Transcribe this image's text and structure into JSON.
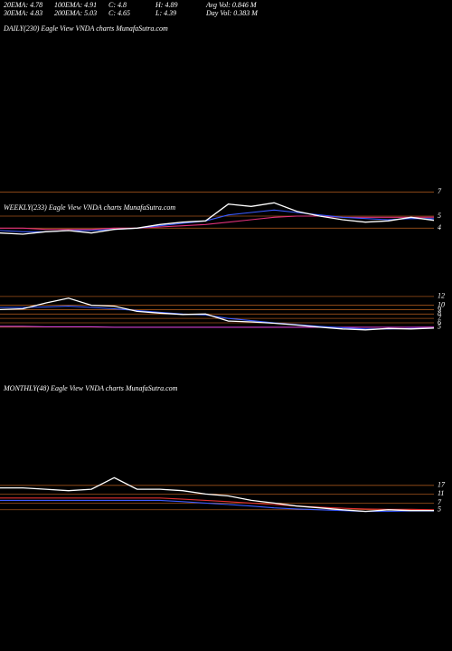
{
  "header": {
    "rows": [
      [
        "20EMA: 4.78",
        "100EMA: 4.91",
        "C: 4.8",
        "H: 4.89",
        "Avg Vol: 0.846  M"
      ],
      [
        "30EMA: 4.83",
        "200EMA: 5.03",
        "C: 4.65",
        "L: 4.39",
        "Day Vol: 0.383  M"
      ]
    ]
  },
  "chart_data": [
    {
      "type": "line",
      "title": "DAILY(230) Eagle   View   VNDA charts MunafaSutra.com",
      "ylim": [
        3,
        13
      ],
      "yticks": [
        12,
        10,
        9,
        8,
        7,
        6,
        5
      ],
      "grid": true,
      "grid_color": "#a0521a",
      "log": false,
      "series": [
        {
          "name": "Price",
          "color": "#ffffff",
          "values": [
            9.0,
            9.2,
            10.5,
            11.6,
            10.0,
            9.8,
            8.6,
            8.2,
            7.9,
            8.0,
            6.4,
            6.2,
            5.9,
            5.5,
            5.0,
            4.6,
            4.4,
            4.7,
            4.6,
            4.8
          ]
        },
        {
          "name": "20EMA",
          "color": "#3a5bff",
          "values": [
            9.5,
            9.5,
            9.6,
            9.8,
            9.5,
            9.2,
            8.8,
            8.4,
            8.0,
            7.8,
            7.0,
            6.5,
            6.0,
            5.6,
            5.2,
            4.9,
            4.6,
            4.6,
            4.7,
            4.78
          ]
        },
        {
          "name": "200EMA",
          "color": "#d040d0",
          "values": [
            5.2,
            5.2,
            5.1,
            5.1,
            5.1,
            5.0,
            5.0,
            5.0,
            5.0,
            5.0,
            5.0,
            5.0,
            5.0,
            5.0,
            5.0,
            5.0,
            5.0,
            5.0,
            5.0,
            5.03
          ]
        }
      ]
    },
    {
      "type": "line",
      "title": "WEEKLY(233) Eagle   View   VNDA charts MunafaSutra.com",
      "ylim": [
        2,
        8
      ],
      "yticks": [
        7,
        5,
        4
      ],
      "grid": true,
      "grid_color": "#a0521a",
      "log": false,
      "series": [
        {
          "name": "Price",
          "color": "#ffffff",
          "values": [
            3.6,
            3.5,
            3.7,
            3.8,
            3.6,
            3.9,
            4.0,
            4.3,
            4.5,
            4.6,
            6.0,
            5.8,
            6.1,
            5.4,
            5.0,
            4.7,
            4.5,
            4.6,
            4.9,
            4.65
          ]
        },
        {
          "name": "20EMA",
          "color": "#3a5bff",
          "values": [
            3.8,
            3.7,
            3.7,
            3.8,
            3.8,
            3.9,
            4.0,
            4.2,
            4.4,
            4.6,
            5.1,
            5.3,
            5.5,
            5.3,
            5.1,
            4.9,
            4.8,
            4.7,
            4.8,
            4.78
          ]
        },
        {
          "name": "100EMA",
          "color": "#e0307a",
          "values": [
            4.0,
            4.0,
            3.9,
            3.9,
            3.9,
            4.0,
            4.0,
            4.1,
            4.2,
            4.3,
            4.5,
            4.7,
            4.9,
            5.0,
            5.0,
            4.9,
            4.9,
            4.9,
            4.9,
            4.91
          ]
        }
      ]
    },
    {
      "type": "line",
      "title": "MONTHLY(48) Eagle   View   VNDA charts MunafaSutra.com",
      "ylim": [
        3,
        40
      ],
      "yticks": [
        17,
        11,
        7,
        5
      ],
      "grid": true,
      "grid_color": "#a0521a",
      "log": true,
      "series": [
        {
          "name": "Price",
          "color": "#ffffff",
          "values": [
            15,
            15,
            14,
            13,
            14,
            25,
            14,
            14,
            13,
            11,
            10,
            8,
            7,
            6,
            5.5,
            5,
            4.6,
            5,
            4.8,
            4.8
          ]
        },
        {
          "name": "20EMA",
          "color": "#3a5bff",
          "values": [
            8,
            8,
            8,
            8,
            8,
            8,
            8,
            8,
            7.5,
            7,
            6.5,
            6,
            5.5,
            5.2,
            5,
            4.8,
            4.6,
            4.6,
            4.7,
            4.7
          ]
        },
        {
          "name": "30EMA",
          "color": "#e03030",
          "values": [
            9,
            9,
            9,
            9,
            9,
            9,
            9,
            9,
            8.5,
            8,
            7.5,
            7,
            6.5,
            6,
            5.7,
            5.4,
            5.2,
            5.1,
            5.1,
            5.0
          ]
        }
      ]
    }
  ]
}
